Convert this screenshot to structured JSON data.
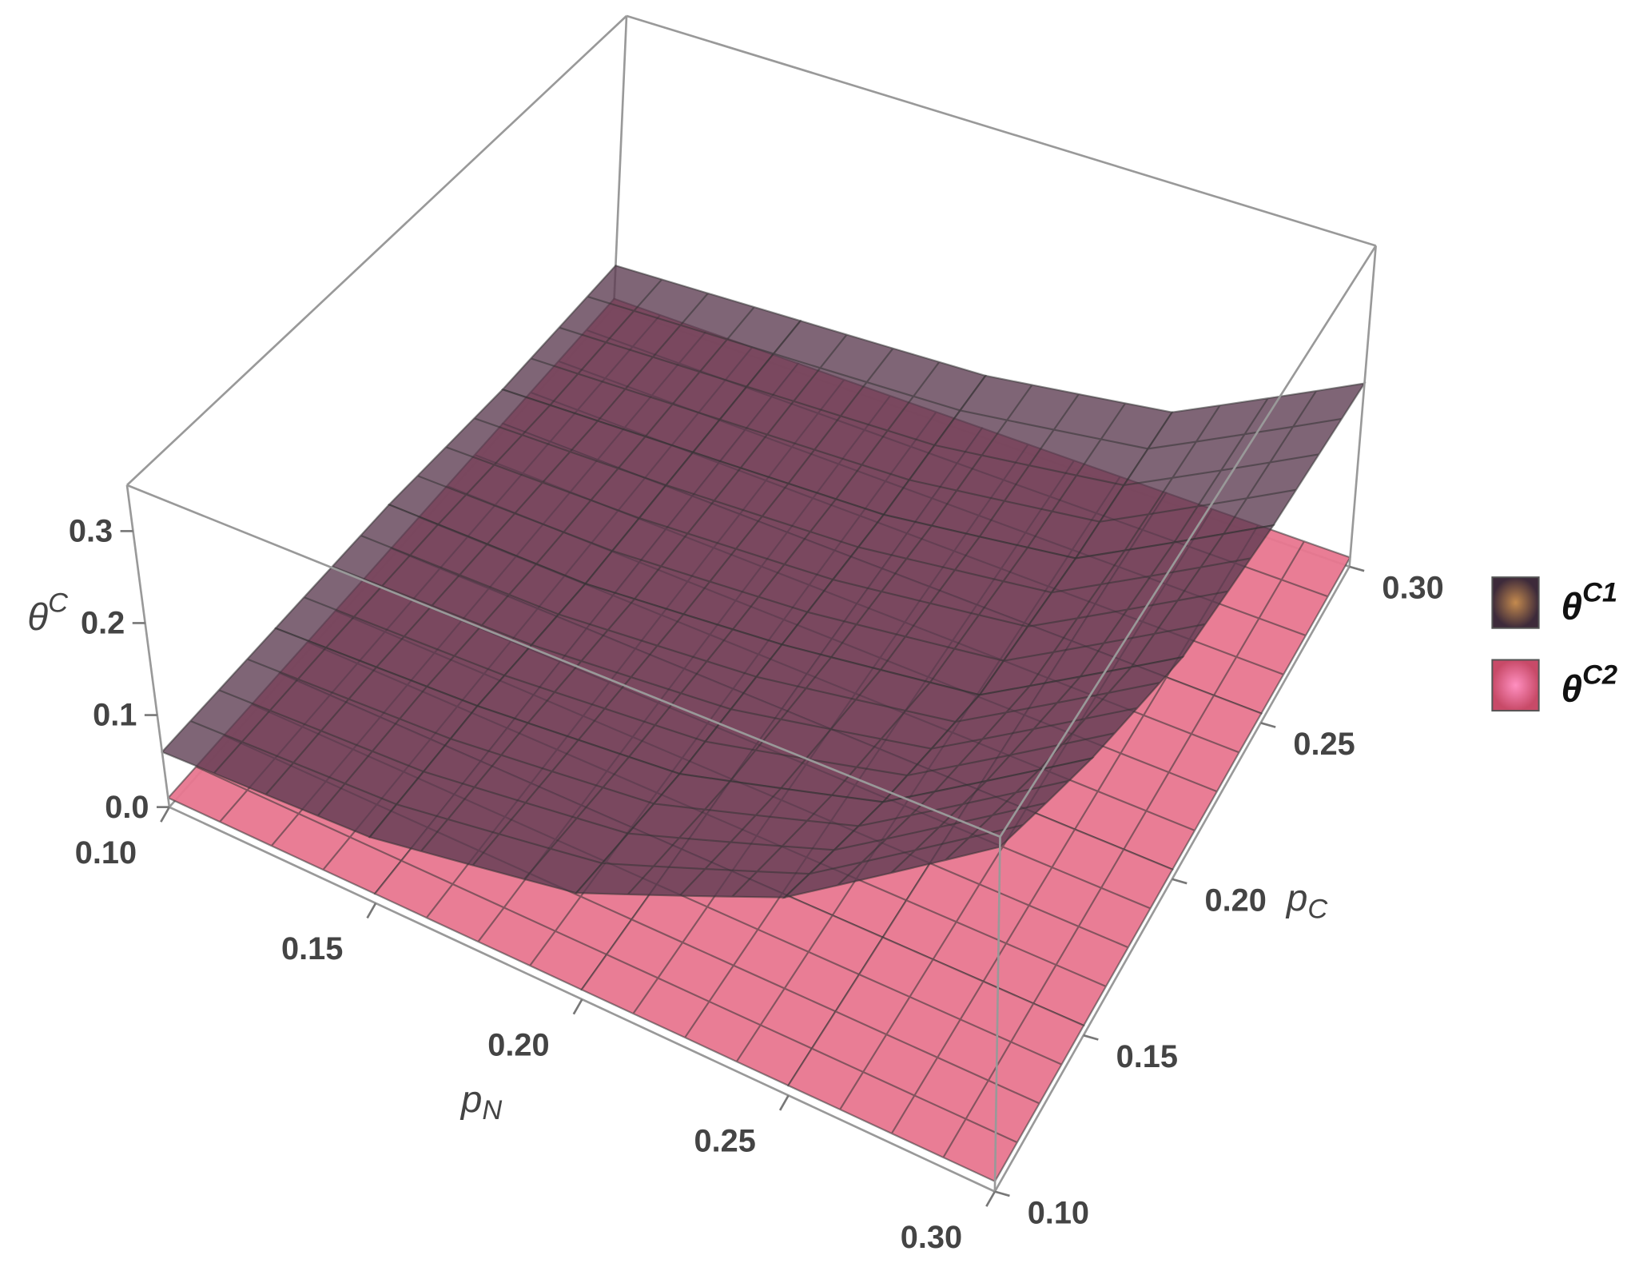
{
  "chart_data": {
    "type": "surface3d",
    "xlabel": "pN",
    "ylabel": "pC",
    "zlabel": "θC",
    "x": [
      0.1,
      0.15,
      0.2,
      0.25,
      0.3
    ],
    "y": [
      0.1,
      0.15,
      0.2,
      0.25,
      0.3
    ],
    "xlim": [
      0.1,
      0.3
    ],
    "ylim": [
      0.1,
      0.3
    ],
    "zlim": [
      0,
      0.35
    ],
    "xticks": [
      {
        "value": 0.1,
        "label": "0.10"
      },
      0.15,
      {
        "value": 0.2,
        "label": "0.20"
      },
      0.25,
      {
        "value": 0.3,
        "label": "0.30"
      }
    ],
    "yticks": [
      {
        "value": 0.1,
        "label": "0.10"
      },
      0.15,
      {
        "value": 0.2,
        "label": "0.20"
      },
      0.25,
      {
        "value": 0.3,
        "label": "0.30"
      }
    ],
    "zticks": [
      {
        "value": 0,
        "label": "0.0"
      },
      0.1,
      0.2,
      0.3
    ],
    "series": [
      {
        "name": "θC2",
        "color": "#e8768f",
        "values": [
          [
            0.01,
            0.01,
            0.01,
            0.01,
            0.01
          ],
          [
            0.01,
            0.01,
            0.01,
            0.01,
            0.01
          ],
          [
            0.01,
            0.01,
            0.01,
            0.01,
            0.01
          ],
          [
            0.01,
            0.01,
            0.01,
            0.01,
            0.01
          ],
          [
            0.01,
            0.01,
            0.01,
            0.01,
            0.01
          ]
        ]
      },
      {
        "name": "θC1",
        "color": "#5b3a50",
        "values": [
          [
            0.06,
            0.06,
            0.06,
            0.05,
            0.05
          ],
          [
            0.07,
            0.07,
            0.06,
            0.06,
            0.06
          ],
          [
            0.11,
            0.09,
            0.08,
            0.07,
            0.07
          ],
          [
            0.2,
            0.15,
            0.11,
            0.1,
            0.1
          ],
          [
            0.34,
            0.28,
            0.23,
            0.21,
            0.2
          ]
        ]
      }
    ]
  }
}
